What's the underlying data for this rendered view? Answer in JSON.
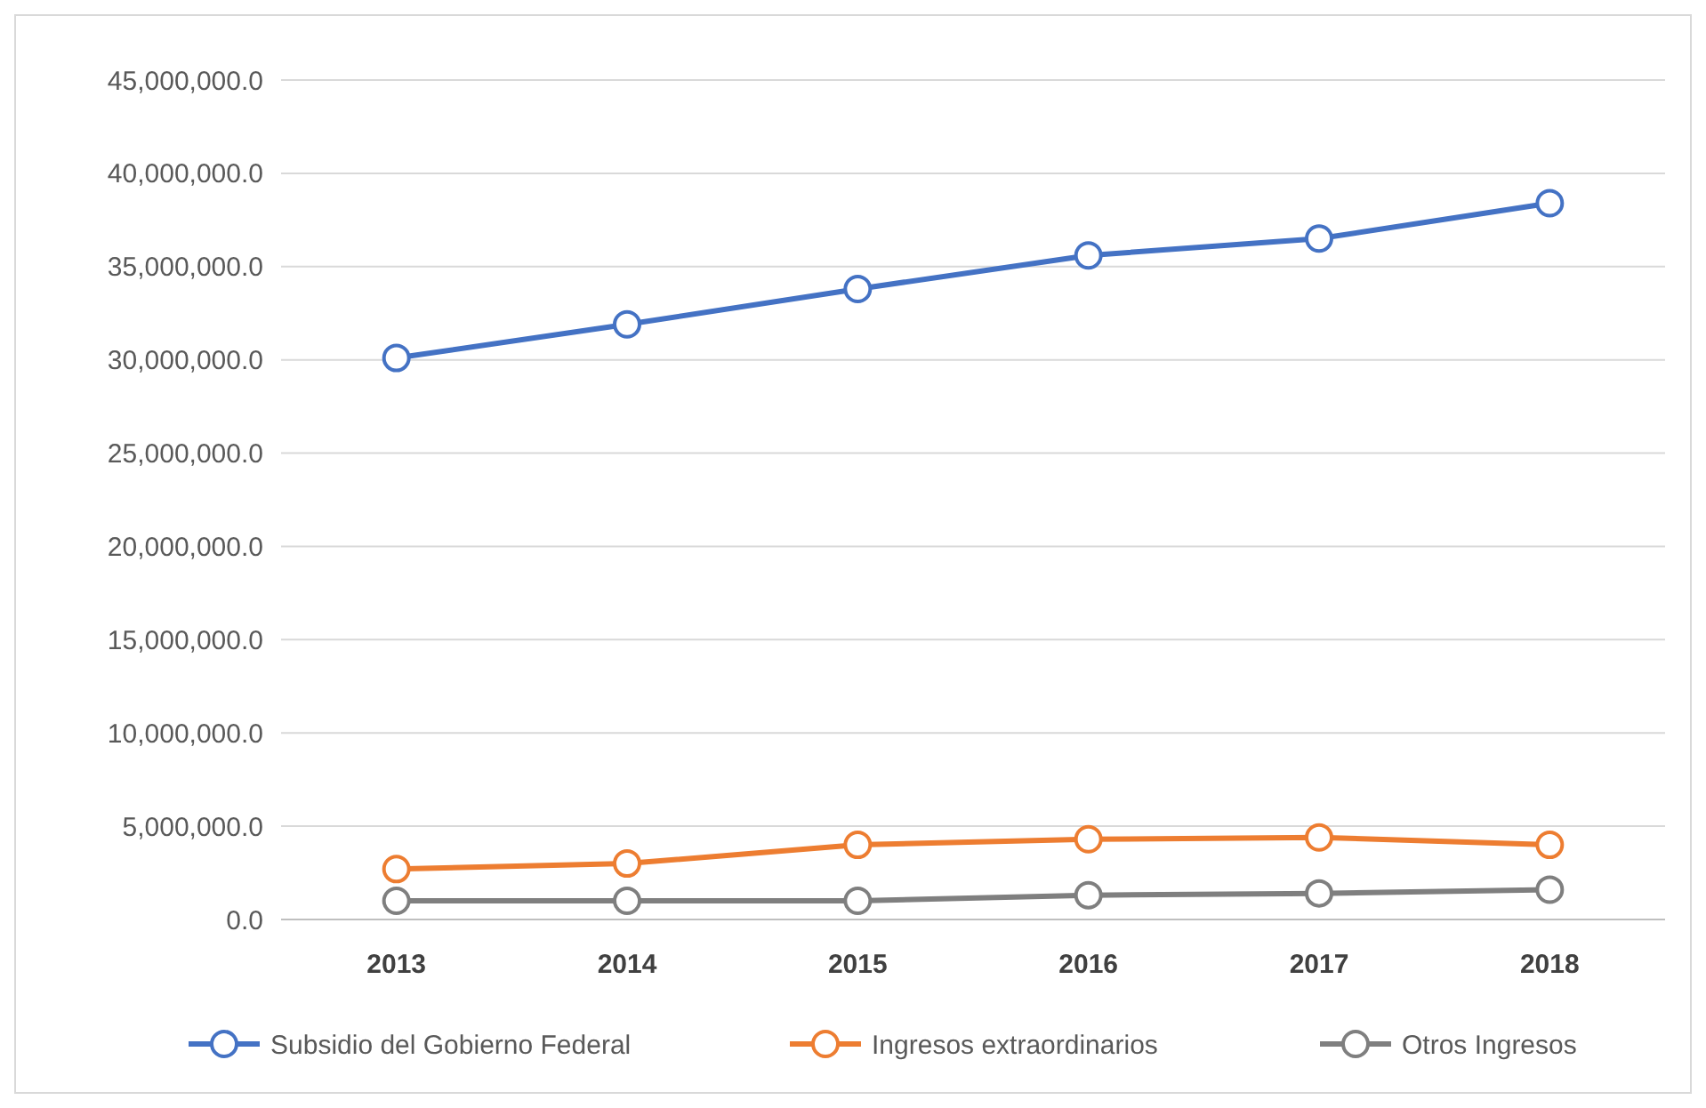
{
  "chart_data": {
    "type": "line",
    "categories": [
      "2013",
      "2014",
      "2015",
      "2016",
      "2017",
      "2018"
    ],
    "series": [
      {
        "name": "Subsidio del Gobierno Federal",
        "color": "#4472c4",
        "values": [
          30100000,
          31900000,
          33800000,
          35600000,
          36500000,
          38400000
        ]
      },
      {
        "name": "Ingresos extraordinarios",
        "color": "#ed7d31",
        "values": [
          2700000,
          3000000,
          4000000,
          4300000,
          4400000,
          4000000
        ]
      },
      {
        "name": "Otros Ingresos",
        "color": "#7f7f7f",
        "values": [
          1000000,
          1000000,
          1000000,
          1300000,
          1400000,
          1600000
        ]
      }
    ],
    "ylim": [
      0,
      45000000
    ],
    "yticks": [
      {
        "value": 0,
        "label": "0.0"
      },
      {
        "value": 5000000,
        "label": "5,000,000.0"
      },
      {
        "value": 10000000,
        "label": "10,000,000.0"
      },
      {
        "value": 15000000,
        "label": "15,000,000.0"
      },
      {
        "value": 20000000,
        "label": "20,000,000.0"
      },
      {
        "value": 25000000,
        "label": "25,000,000.0"
      },
      {
        "value": 30000000,
        "label": "30,000,000.0"
      },
      {
        "value": 35000000,
        "label": "35,000,000.0"
      },
      {
        "value": 40000000,
        "label": "40,000,000.0"
      },
      {
        "value": 45000000,
        "label": "45,000,000.0"
      }
    ],
    "grid": "y",
    "legend": "bottom",
    "marker": "circle",
    "line_style": "solid"
  }
}
